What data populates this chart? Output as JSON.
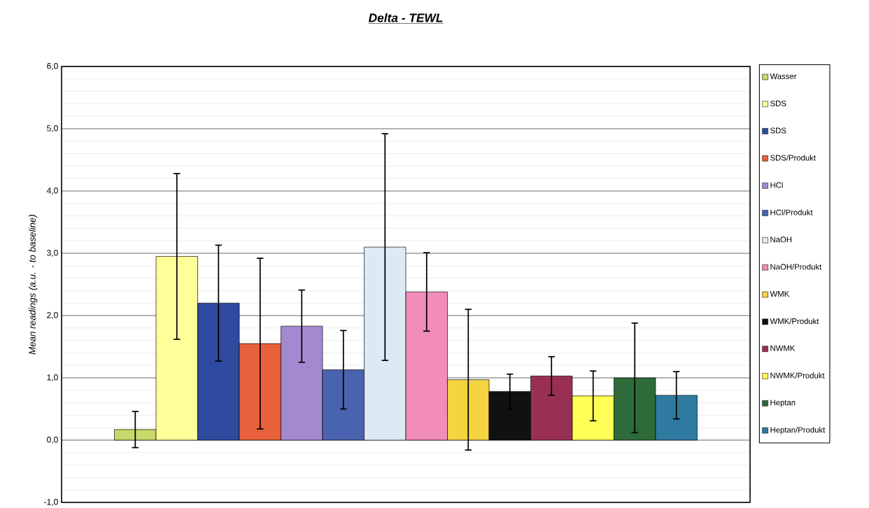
{
  "chart_data": {
    "type": "bar",
    "title": "Delta - TEWL",
    "ylabel": "Mean readings (a.u. - to baseline)",
    "categories": [
      null
    ],
    "series": [
      {
        "name": "Wasser",
        "color": "#c8d86a",
        "values": [
          0.17
        ],
        "errors": [
          0.29
        ]
      },
      {
        "name": "SDS",
        "color": "#ffff99",
        "values": [
          2.95
        ],
        "errors": [
          1.33
        ]
      },
      {
        "name": "SDS",
        "color": "#2e4a9e",
        "values": [
          2.2
        ],
        "errors": [
          0.93
        ]
      },
      {
        "name": "SDS/Produkt",
        "color": "#e8603c",
        "values": [
          1.55
        ],
        "errors": [
          1.37
        ]
      },
      {
        "name": "HCl",
        "color": "#a38ad0",
        "values": [
          1.83
        ],
        "errors": [
          0.58
        ]
      },
      {
        "name": "HCl/Produkt",
        "color": "#4a63b0",
        "values": [
          1.13
        ],
        "errors": [
          0.63
        ]
      },
      {
        "name": "NaOH",
        "color": "#dde9f5",
        "values": [
          3.1
        ],
        "errors": [
          1.82
        ]
      },
      {
        "name": "NaOH/Produkt",
        "color": "#f28cb8",
        "values": [
          2.38
        ],
        "errors": [
          0.63
        ]
      },
      {
        "name": "WMK",
        "color": "#f5d442",
        "values": [
          0.97
        ],
        "errors": [
          1.13
        ]
      },
      {
        "name": "WMK/Produkt",
        "color": "#111111",
        "values": [
          0.78
        ],
        "errors": [
          0.28
        ]
      },
      {
        "name": "NWMK",
        "color": "#9a2f55",
        "values": [
          1.03
        ],
        "errors": [
          0.31
        ]
      },
      {
        "name": "NWMK/Produkt",
        "color": "#ffff55",
        "values": [
          0.71
        ],
        "errors": [
          0.4
        ]
      },
      {
        "name": "Heptan",
        "color": "#2e6b3a",
        "values": [
          1.0
        ],
        "errors": [
          0.88
        ]
      },
      {
        "name": "Heptan/Produkt",
        "color": "#2f7aa0",
        "values": [
          0.72
        ],
        "errors": [
          0.38
        ]
      }
    ],
    "ylim": [
      -1,
      6
    ],
    "yticks": [
      {
        "value": -1,
        "label": "-1,0"
      },
      {
        "value": 0,
        "label": "0,0"
      },
      {
        "value": 1,
        "label": "1,0"
      },
      {
        "value": 2,
        "label": "2,0"
      },
      {
        "value": 3,
        "label": "3,0"
      },
      {
        "value": 4,
        "label": "4,0"
      },
      {
        "value": 5,
        "label": "5,0"
      },
      {
        "value": 6,
        "label": "6,0"
      }
    ],
    "grid": "y",
    "legend": "right"
  }
}
